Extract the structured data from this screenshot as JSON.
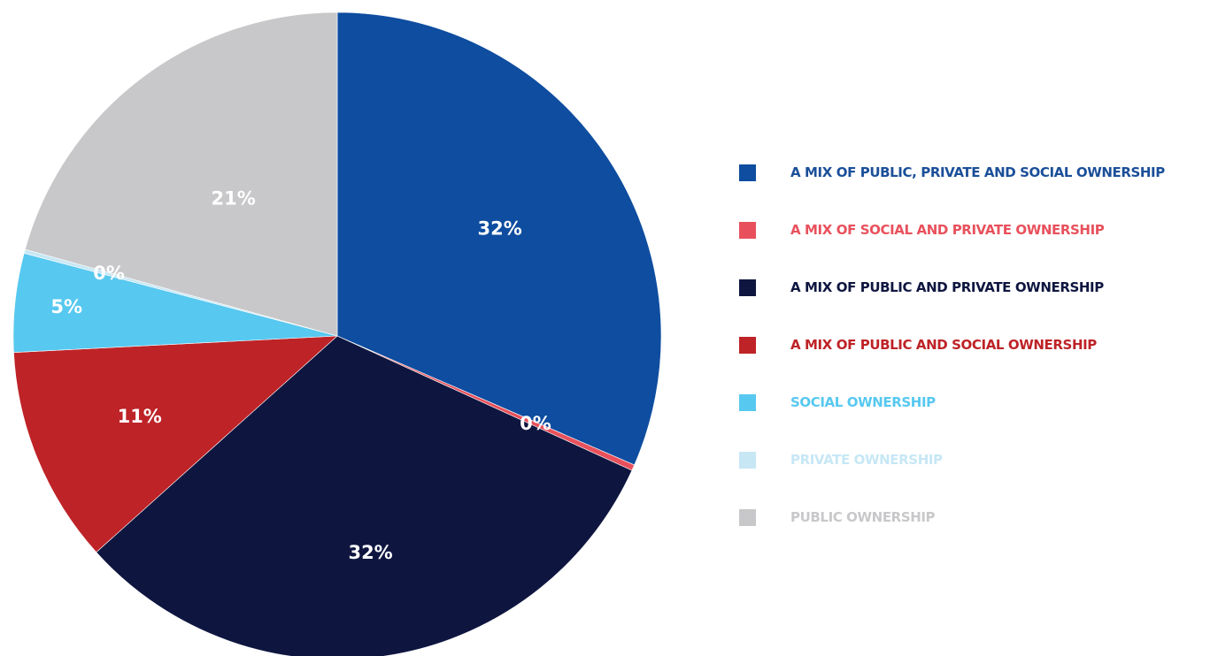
{
  "chart_data": {
    "type": "pie",
    "title": "",
    "slices": [
      {
        "label": "A MIX OF PUBLIC, PRIVATE AND SOCIAL OWNERSHIP",
        "value": 32,
        "display": "32%",
        "color": "#0e4d9f"
      },
      {
        "label": "A MIX OF SOCIAL AND PRIVATE OWNERSHIP",
        "value": 0.3,
        "display": "0%",
        "color": "#e8515c"
      },
      {
        "label": "A MIX OF PUBLIC AND PRIVATE OWNERSHIP",
        "value": 32,
        "display": "32%",
        "color": "#0e1640"
      },
      {
        "label": "A MIX OF PUBLIC AND SOCIAL OWNERSHIP",
        "value": 11,
        "display": "11%",
        "color": "#be2327"
      },
      {
        "label": "SOCIAL OWNERSHIP",
        "value": 5,
        "display": "5%",
        "color": "#57c8f0"
      },
      {
        "label": "PRIVATE OWNERSHIP",
        "value": 0.2,
        "display": "0%",
        "color": "#c7e7f5"
      },
      {
        "label": "PUBLIC OWNERSHIP",
        "value": 21,
        "display": "21%",
        "color": "#c8c8ca"
      }
    ],
    "legend": {
      "position": "right",
      "label_colors": [
        "#1b4f99",
        "#e8515c",
        "#0e1640",
        "#be2327",
        "#57c8f0",
        "#c7e7f5",
        "#c8c8ca"
      ]
    },
    "start_angle": "12 o'clock",
    "direction": "clockwise"
  }
}
